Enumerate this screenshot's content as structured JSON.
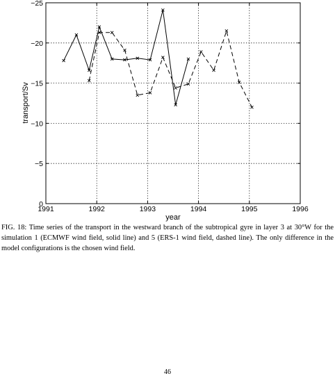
{
  "chart_data": {
    "type": "line",
    "xlabel": "year",
    "ylabel": "transport/Sv",
    "xlim": [
      1991,
      1996
    ],
    "ylim": [
      0,
      -25
    ],
    "y_reversed": true,
    "grid": true,
    "grid_style": "dotted",
    "xticks": [
      1991,
      1992,
      1993,
      1994,
      1995,
      1996
    ],
    "yticks": [
      0,
      -5,
      -10,
      -15,
      -20,
      -25
    ],
    "xtick_labels": [
      "1991",
      "1992",
      "1993",
      "1994",
      "1995",
      "1996"
    ],
    "ytick_labels": [
      "0",
      "−5",
      "−10",
      "−15",
      "−20",
      "−25"
    ],
    "series": [
      {
        "line_style": "solid",
        "marker": "x",
        "x": [
          1991.35,
          1991.6,
          1991.85,
          1992.05,
          1992.3,
          1992.55,
          1992.8,
          1993.05,
          1993.3,
          1993.55,
          1993.8
        ],
        "y": [
          -17.8,
          -21.0,
          -16.6,
          -22.0,
          -18.0,
          -17.9,
          -18.1,
          -17.9,
          -24.1,
          -12.3,
          -18.0
        ]
      },
      {
        "line_style": "dashed",
        "marker": "x",
        "x": [
          1991.85,
          1992.05,
          1992.3,
          1992.55,
          1992.8,
          1993.05,
          1993.3,
          1993.55,
          1993.8,
          1994.05,
          1994.3,
          1994.55,
          1994.8,
          1995.05
        ],
        "y": [
          -15.3,
          -21.3,
          -21.3,
          -19.1,
          -13.5,
          -13.8,
          -18.2,
          -14.4,
          -14.9,
          -18.9,
          -16.6,
          -21.5,
          -15.1,
          -12.0
        ]
      }
    ]
  },
  "caption": "FIG. 18: Time series of the transport in the westward branch of the subtropical gyre in layer 3 at 30°W for the simulation 1 (ECMWF wind field, solid line) and 5 (ERS-1 wind field, dashed line). The only difference in the model configurations is the chosen wind field.",
  "page_number": "46"
}
